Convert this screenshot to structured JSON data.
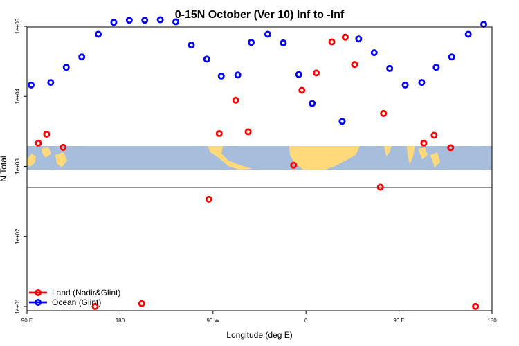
{
  "chart_data": {
    "type": "scatter",
    "title": "0-15N October (Ver 10)   Inf to -Inf",
    "xlabel": "Longitude (deg E)",
    "ylabel": "N Total",
    "x_ticks": [
      {
        "value": 90,
        "label": "90 E"
      },
      {
        "value": 180,
        "label": "180"
      },
      {
        "value": 270,
        "label": "90 W"
      },
      {
        "value": 360,
        "label": "0"
      },
      {
        "value": 450,
        "label": "90 E"
      },
      {
        "value": 540,
        "label": "180"
      }
    ],
    "y_ticks": [
      {
        "value": 10,
        "label": "1e+01"
      },
      {
        "value": 100,
        "label": "1e+02"
      },
      {
        "value": 1000,
        "label": "1e+03"
      },
      {
        "value": 10000,
        "label": "1e+04"
      },
      {
        "value": 100000,
        "label": "1e+05"
      }
    ],
    "xlim": [
      90,
      540
    ],
    "ylim_log10": [
      0.94,
      4.99
    ],
    "y_scale": "log",
    "reference_line_y": 500,
    "background_map": "world land/ocean strip, 0-15N",
    "map_colors": {
      "ocean": "#a6bddb",
      "land": "#ffd97a"
    },
    "legend": {
      "position": "bottom-left",
      "entries": [
        "Land (Nadir&Glint)",
        "Ocean (Glint)"
      ]
    },
    "series": [
      {
        "name": "Land (Nadir&Glint)",
        "color": "#ff0000",
        "points": [
          [
            101,
            2150
          ],
          [
            109,
            2880
          ],
          [
            125,
            1870
          ],
          [
            156,
            10
          ],
          [
            201,
            11
          ],
          [
            266,
            340
          ],
          [
            276,
            2940
          ],
          [
            292,
            8800
          ],
          [
            304,
            3120
          ],
          [
            348,
            1040
          ],
          [
            356,
            12200
          ],
          [
            370,
            21600
          ],
          [
            385,
            60000
          ],
          [
            398,
            70000
          ],
          [
            407,
            28500
          ],
          [
            432,
            505
          ],
          [
            435,
            5700
          ],
          [
            474,
            2150
          ],
          [
            484,
            2780
          ],
          [
            500,
            1850
          ],
          [
            524,
            10
          ]
        ]
      },
      {
        "name": "Ocean (Glint)",
        "color": "#0000ff",
        "points": [
          [
            94,
            14500
          ],
          [
            113,
            15800
          ],
          [
            128,
            26000
          ],
          [
            143,
            36500
          ],
          [
            159,
            77000
          ],
          [
            174,
            114000
          ],
          [
            189,
            122000
          ],
          [
            204,
            122000
          ],
          [
            219,
            124000
          ],
          [
            234,
            116000
          ],
          [
            249,
            54000
          ],
          [
            264,
            34000
          ],
          [
            278,
            19500
          ],
          [
            294,
            20200
          ],
          [
            307,
            59000
          ],
          [
            323,
            77000
          ],
          [
            338,
            58000
          ],
          [
            353,
            20500
          ],
          [
            366,
            7900
          ],
          [
            395,
            4400
          ],
          [
            411,
            66000
          ],
          [
            426,
            42000
          ],
          [
            441,
            25000
          ],
          [
            456,
            14500
          ],
          [
            472,
            15800
          ],
          [
            486,
            26000
          ],
          [
            501,
            36500
          ],
          [
            517,
            77000
          ],
          [
            532,
            107000
          ]
        ]
      }
    ]
  }
}
